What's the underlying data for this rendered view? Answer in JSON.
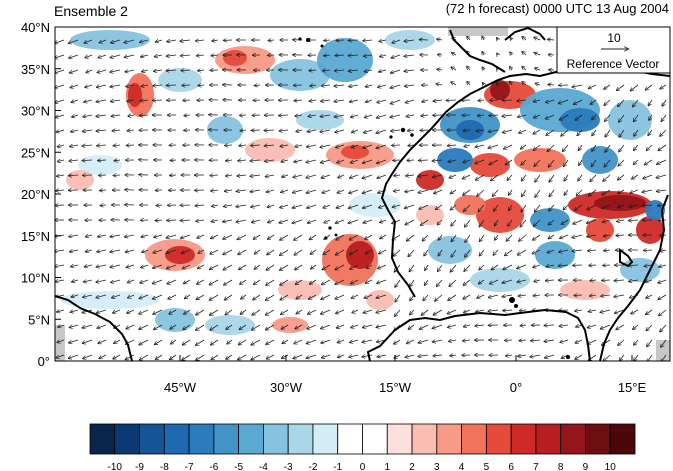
{
  "header": {
    "left_title": "Ensemble 2",
    "right_title": "(72 h forecast) 0000 UTC 13 Aug 2004"
  },
  "map": {
    "lat_ticks": [
      "40°N",
      "35°N",
      "30°N",
      "25°N",
      "20°N",
      "15°N",
      "10°N",
      "5°N",
      "0°"
    ],
    "lon_ticks": [
      "45°W",
      "30°W",
      "15°W",
      "0°",
      "15°E"
    ],
    "reference_vector": {
      "value": "10",
      "label": "Reference Vector"
    },
    "ocean_shading": "#ffffff",
    "coast_color": "#000000",
    "missing_color": "#c8c8c8"
  },
  "colorbar": {
    "labels": [
      "-10",
      "-9",
      "-8",
      "-7",
      "-6",
      "-5",
      "-4",
      "-3",
      "-2",
      "-1",
      "0",
      "1",
      "2",
      "3",
      "4",
      "5",
      "6",
      "7",
      "8",
      "9",
      "10"
    ],
    "colors": [
      "#08264a",
      "#0b3a73",
      "#155596",
      "#1f69b0",
      "#2b7bbd",
      "#4193c8",
      "#5aa9d3",
      "#86c3df",
      "#a9d6e8",
      "#d3edf7",
      "#ffffff",
      "#ffffff",
      "#fde0dd",
      "#fbbdb1",
      "#f79a86",
      "#f1735a",
      "#e54a3a",
      "#cf2a27",
      "#b81d21",
      "#94151a",
      "#6e0d12",
      "#4d060a"
    ]
  }
}
